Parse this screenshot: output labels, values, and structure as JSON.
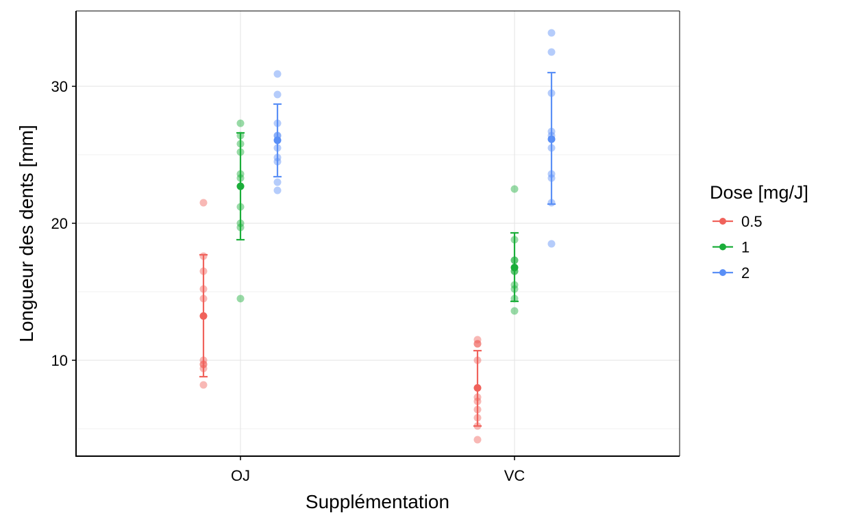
{
  "chart_data": {
    "type": "scatter",
    "xlabel": "Supplémentation",
    "ylabel": "Longueur des dents  [mm]",
    "categories": [
      "OJ",
      "VC"
    ],
    "ylim": [
      3,
      35.5
    ],
    "yticks": [
      10,
      20,
      30
    ],
    "yticks_minor": [
      5,
      15,
      25
    ],
    "grid": true,
    "legend": {
      "title": "Dose  [mg/J]",
      "position": "right",
      "entries": [
        "0.5",
        "1",
        "2"
      ]
    },
    "series": [
      {
        "name": "0.5",
        "color": "#F0625B",
        "points": {
          "OJ": [
            21.5,
            17.6,
            16.5,
            15.2,
            14.5,
            10.0,
            9.7,
            9.7,
            9.4,
            8.2
          ],
          "VC": [
            11.5,
            11.2,
            11.2,
            10.0,
            7.3,
            7.0,
            6.4,
            5.8,
            5.2,
            4.2
          ]
        },
        "mean": {
          "OJ": 13.23,
          "VC": 7.98
        },
        "error": {
          "OJ": [
            8.8,
            17.7
          ],
          "VC": [
            5.2,
            10.7
          ]
        }
      },
      {
        "name": "1",
        "color": "#1BAE3A",
        "points": {
          "OJ": [
            27.3,
            26.4,
            25.8,
            25.2,
            23.6,
            23.3,
            21.2,
            20.0,
            19.7,
            14.5
          ],
          "VC": [
            22.5,
            18.8,
            17.3,
            17.3,
            16.5,
            15.5,
            15.2,
            14.5,
            13.6,
            16.5
          ]
        },
        "mean": {
          "OJ": 22.7,
          "VC": 16.77
        },
        "error": {
          "OJ": [
            18.8,
            26.6
          ],
          "VC": [
            14.3,
            19.3
          ]
        }
      },
      {
        "name": "2",
        "color": "#5A8FF6",
        "points": {
          "OJ": [
            30.9,
            29.4,
            27.3,
            26.4,
            26.4,
            25.5,
            24.8,
            24.5,
            23.0,
            22.4
          ],
          "VC": [
            33.9,
            32.5,
            29.5,
            26.7,
            26.4,
            25.5,
            23.6,
            23.3,
            21.5,
            18.5
          ]
        },
        "mean": {
          "OJ": 26.06,
          "VC": 26.14
        },
        "error": {
          "OJ": [
            23.4,
            28.7
          ],
          "VC": [
            21.4,
            31.0
          ]
        }
      }
    ]
  }
}
